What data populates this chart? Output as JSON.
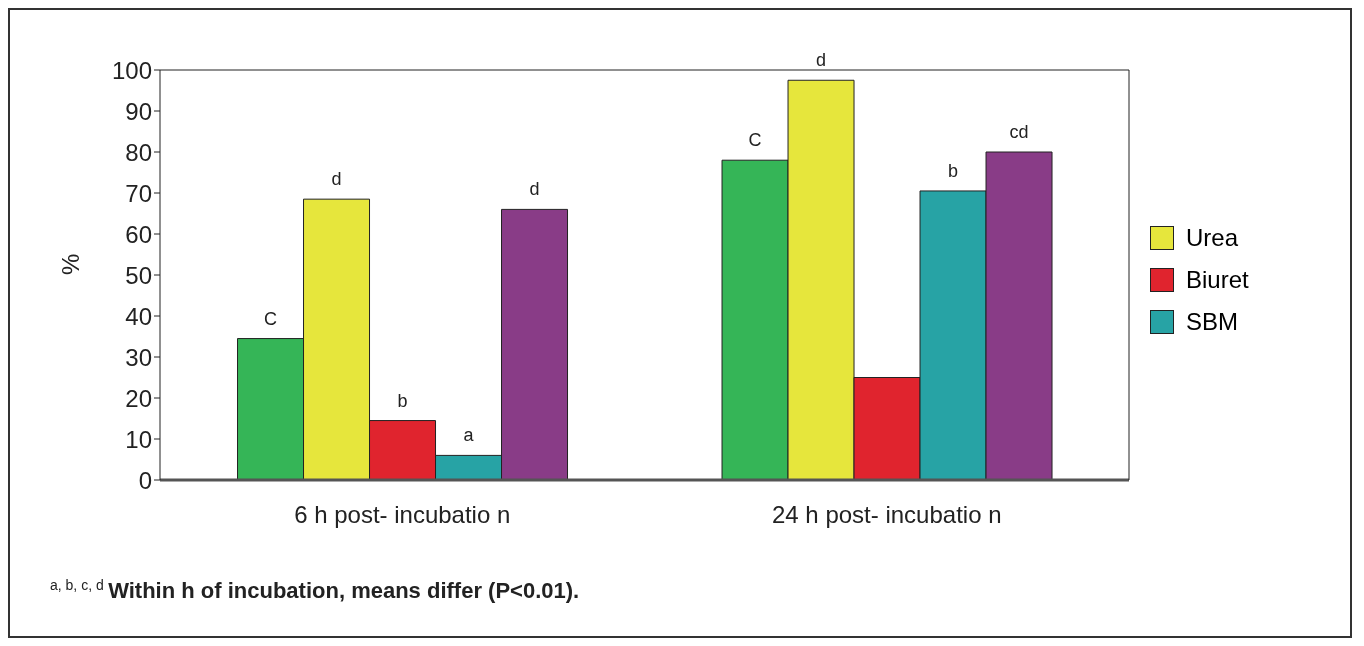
{
  "chart_data": {
    "type": "bar",
    "ylabel": "%",
    "categories": [
      "6 h post- incubatio n",
      "24 h post- incubatio n"
    ],
    "series": [
      {
        "color": "#35b557",
        "values": [
          34.5,
          78
        ],
        "value_labels": [
          "C",
          "C"
        ]
      },
      {
        "name": "Urea",
        "color": "#e6e63c",
        "values": [
          68.5,
          97.5
        ],
        "value_labels": [
          "d",
          "d"
        ]
      },
      {
        "name": "Biuret",
        "color": "#e0242e",
        "values": [
          14.5,
          25
        ],
        "value_labels": [
          "b",
          null
        ]
      },
      {
        "name": "SBM",
        "color": "#27a3a5",
        "values": [
          6,
          70.5
        ],
        "value_labels": [
          "a",
          "b"
        ]
      },
      {
        "color": "#893c87",
        "values": [
          66,
          80
        ],
        "value_labels": [
          "d",
          "cd"
        ]
      }
    ],
    "ylim": [
      0,
      100
    ],
    "yticks": [
      0,
      10,
      20,
      30,
      40,
      50,
      60,
      70,
      80,
      90,
      100
    ],
    "grid": false,
    "legend": "right",
    "annotations": [
      "$^{a, b, c, d}$ Within h of incubation, means differ (P<0.01)."
    ]
  }
}
